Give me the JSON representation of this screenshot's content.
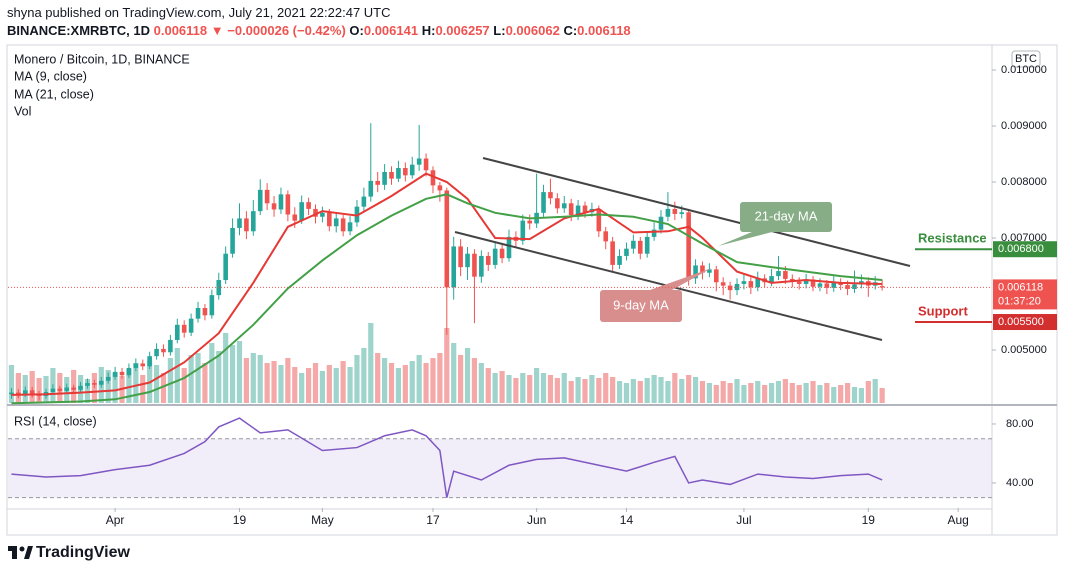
{
  "header": {
    "publisher_line": "shyna published on TradingView.com, July 21, 2021 22:22:47 UTC",
    "symbol": "BINANCE:XMRBTC, 1D",
    "change": "▼ −0.000026 (−0.42%)",
    "ohlc_labels": [
      "O:",
      "H:",
      "L:",
      "C:"
    ],
    "countdown": "01:37:20",
    "currency": "BTC",
    "brand": "TradingView"
  },
  "chart_data": {
    "type": "candlestick",
    "title": "Monero / Bitcoin, 1D, BINANCE",
    "up_color": "#26a69a",
    "down_color": "#ef5350",
    "open": [
      0.00421,
      0.00424,
      0.0042,
      0.00428,
      0.00422,
      0.00418,
      0.00425,
      0.00431,
      0.00427,
      0.00433,
      0.00429,
      0.00436,
      0.00441,
      0.00438,
      0.00445,
      0.00452,
      0.00461,
      0.00455,
      0.00468,
      0.00476,
      0.00471,
      0.00489,
      0.00502,
      0.00496,
      0.00518,
      0.00545,
      0.00531,
      0.00556,
      0.00575,
      0.00562,
      0.00598,
      0.00625,
      0.00672,
      0.00718,
      0.00735,
      0.00712,
      0.00748,
      0.00786,
      0.00762,
      0.00751,
      0.00778,
      0.00742,
      0.00731,
      0.00764,
      0.00752,
      0.00738,
      0.00745,
      0.00721,
      0.00735,
      0.00712,
      0.00728,
      0.00756,
      0.00774,
      0.00802,
      0.00795,
      0.00818,
      0.00806,
      0.00825,
      0.00812,
      0.00831,
      0.00842,
      0.00821,
      0.00794,
      0.00785,
      0.00612,
      0.00685,
      0.00648,
      0.00672,
      0.00631,
      0.00668,
      0.00652,
      0.00681,
      0.00664,
      0.00702,
      0.00695,
      0.00731,
      0.00726,
      0.00745,
      0.00782,
      0.00771,
      0.00753,
      0.00762,
      0.00741,
      0.00758,
      0.00746,
      0.00752,
      0.00712,
      0.00694,
      0.00652,
      0.00668,
      0.00681,
      0.00695,
      0.00672,
      0.00702,
      0.00715,
      0.00738,
      0.00752,
      0.00743,
      0.00746,
      0.00628,
      0.00651,
      0.00638,
      0.00644,
      0.00621,
      0.00615,
      0.00607,
      0.00618,
      0.00623,
      0.00612,
      0.00628,
      0.00621,
      0.00632,
      0.00641,
      0.00627,
      0.00622,
      0.00618,
      0.00626,
      0.00613,
      0.00619,
      0.00611,
      0.00621,
      0.00616,
      0.00609,
      0.00617,
      0.00623,
      0.00615,
      0.006141
    ],
    "high": [
      0.00432,
      0.0043,
      0.00435,
      0.00434,
      0.00427,
      0.00431,
      0.00439,
      0.00436,
      0.0044,
      0.00438,
      0.00443,
      0.00449,
      0.00447,
      0.00452,
      0.0046,
      0.0047,
      0.00468,
      0.00476,
      0.00485,
      0.00483,
      0.00497,
      0.00512,
      0.0051,
      0.00527,
      0.00556,
      0.00553,
      0.00565,
      0.00586,
      0.00582,
      0.00608,
      0.00638,
      0.00685,
      0.00735,
      0.00762,
      0.00748,
      0.00768,
      0.00805,
      0.00798,
      0.00775,
      0.0079,
      0.00785,
      0.00755,
      0.00776,
      0.00772,
      0.0076,
      0.00756,
      0.00752,
      0.00745,
      0.00741,
      0.00739,
      0.00768,
      0.0079,
      0.00905,
      0.00818,
      0.00832,
      0.00828,
      0.00838,
      0.00835,
      0.00845,
      0.00902,
      0.00851,
      0.00828,
      0.008,
      0.0079,
      0.00702,
      0.00698,
      0.00684,
      0.0068,
      0.00678,
      0.00675,
      0.00692,
      0.0069,
      0.00715,
      0.00712,
      0.00742,
      0.00742,
      0.00815,
      0.00795,
      0.00806,
      0.0078,
      0.00775,
      0.0077,
      0.00768,
      0.00765,
      0.00763,
      0.00758,
      0.0072,
      0.00702,
      0.0068,
      0.00692,
      0.00706,
      0.00702,
      0.00712,
      0.00728,
      0.0075,
      0.00782,
      0.00765,
      0.00758,
      0.00752,
      0.00662,
      0.00658,
      0.00655,
      0.0065,
      0.0063,
      0.00622,
      0.00628,
      0.00635,
      0.0063,
      0.0064,
      0.00635,
      0.00645,
      0.00668,
      0.0065,
      0.00635,
      0.0063,
      0.00636,
      0.00632,
      0.00628,
      0.00625,
      0.00632,
      0.00628,
      0.00624,
      0.00642,
      0.00635,
      0.0063,
      0.00632,
      0.006257
    ],
    "low": [
      0.00413,
      0.00414,
      0.00416,
      0.00415,
      0.0041,
      0.00413,
      0.0042,
      0.00421,
      0.00422,
      0.00423,
      0.00425,
      0.00431,
      0.00432,
      0.00433,
      0.0044,
      0.00447,
      0.00449,
      0.0045,
      0.00462,
      0.00464,
      0.00466,
      0.00483,
      0.00488,
      0.0049,
      0.00512,
      0.00522,
      0.00525,
      0.00549,
      0.00553,
      0.00556,
      0.0059,
      0.00618,
      0.00665,
      0.00705,
      0.00698,
      0.00704,
      0.00741,
      0.0075,
      0.00738,
      0.00743,
      0.0073,
      0.00718,
      0.00725,
      0.00741,
      0.00726,
      0.00728,
      0.00712,
      0.0071,
      0.00703,
      0.00705,
      0.0072,
      0.00748,
      0.00765,
      0.00782,
      0.00786,
      0.00795,
      0.008,
      0.00801,
      0.00806,
      0.0082,
      0.0081,
      0.0078,
      0.00765,
      0.00527,
      0.0059,
      0.00632,
      0.00625,
      0.00548,
      0.0062,
      0.00641,
      0.00645,
      0.00655,
      0.00658,
      0.00684,
      0.00688,
      0.00715,
      0.00718,
      0.00738,
      0.0076,
      0.00744,
      0.00745,
      0.0073,
      0.00732,
      0.00736,
      0.00738,
      0.00702,
      0.0068,
      0.0064,
      0.00645,
      0.0066,
      0.00672,
      0.00662,
      0.00665,
      0.00695,
      0.00708,
      0.0073,
      0.00732,
      0.00735,
      0.00615,
      0.00618,
      0.00626,
      0.0063,
      0.00605,
      0.00598,
      0.0059,
      0.00598,
      0.00608,
      0.006,
      0.00605,
      0.00612,
      0.00614,
      0.00625,
      0.00618,
      0.00612,
      0.00608,
      0.0061,
      0.00605,
      0.00605,
      0.006,
      0.00604,
      0.00607,
      0.00598,
      0.00602,
      0.0061,
      0.00595,
      0.00608,
      0.006062
    ],
    "close": [
      0.00424,
      0.0042,
      0.00428,
      0.00422,
      0.00418,
      0.00425,
      0.00431,
      0.00427,
      0.00433,
      0.00429,
      0.00436,
      0.00441,
      0.00438,
      0.00445,
      0.00452,
      0.00461,
      0.00455,
      0.00468,
      0.00476,
      0.00471,
      0.00489,
      0.00502,
      0.00496,
      0.00518,
      0.00545,
      0.00531,
      0.00556,
      0.00575,
      0.00562,
      0.00598,
      0.00625,
      0.00672,
      0.00718,
      0.00735,
      0.00712,
      0.00748,
      0.00786,
      0.00762,
      0.00751,
      0.00778,
      0.00742,
      0.00731,
      0.00764,
      0.00752,
      0.00738,
      0.00745,
      0.00721,
      0.00735,
      0.00712,
      0.00728,
      0.00756,
      0.00774,
      0.00802,
      0.00795,
      0.00818,
      0.00806,
      0.00825,
      0.00812,
      0.00831,
      0.00842,
      0.00821,
      0.00794,
      0.00785,
      0.00612,
      0.00685,
      0.00648,
      0.00672,
      0.00631,
      0.00668,
      0.00652,
      0.00681,
      0.00664,
      0.00702,
      0.00695,
      0.00731,
      0.00726,
      0.00745,
      0.00782,
      0.00771,
      0.00753,
      0.00762,
      0.00741,
      0.00758,
      0.00746,
      0.00752,
      0.00712,
      0.00694,
      0.00652,
      0.00668,
      0.00681,
      0.00695,
      0.00672,
      0.00702,
      0.00715,
      0.00738,
      0.00752,
      0.00743,
      0.00746,
      0.00628,
      0.00651,
      0.00638,
      0.00644,
      0.00621,
      0.00615,
      0.00607,
      0.00618,
      0.00623,
      0.00612,
      0.00628,
      0.00621,
      0.00632,
      0.00641,
      0.00627,
      0.00622,
      0.00618,
      0.00626,
      0.00613,
      0.00619,
      0.00611,
      0.00621,
      0.00616,
      0.00609,
      0.00617,
      0.00623,
      0.00615,
      0.00621,
      0.006118
    ],
    "xlim": [
      -0.5,
      141.9
    ],
    "xticks": [
      {
        "value": 15,
        "label": "Apr"
      },
      {
        "value": 33,
        "label": "19"
      },
      {
        "value": 45,
        "label": "May"
      },
      {
        "value": 61,
        "label": "17"
      },
      {
        "value": 76,
        "label": "Jun"
      },
      {
        "value": 89,
        "label": "14"
      },
      {
        "value": 106,
        "label": "Jul"
      },
      {
        "value": 124,
        "label": "19"
      },
      {
        "value": 137,
        "label": "Aug"
      }
    ],
    "ylim": [
      0.004054,
      0.010429
    ],
    "yticks": [
      {
        "value": 0.01,
        "label": "0.010000"
      },
      {
        "value": 0.009,
        "label": "0.009000"
      },
      {
        "value": 0.008,
        "label": "0.008000"
      },
      {
        "value": 0.007,
        "label": "0.007000"
      },
      {
        "value": 0.005,
        "label": "0.005000"
      }
    ],
    "series": [
      {
        "name": "MA (9, close)",
        "color": "#e53935",
        "x": [
          0,
          5,
          10,
          15,
          20,
          25,
          30,
          35,
          40,
          45,
          50,
          55,
          60,
          63,
          66,
          70,
          75,
          80,
          85,
          90,
          95,
          98,
          100,
          105,
          110,
          115,
          120,
          126
        ],
        "values": [
          0.0042,
          0.00421,
          0.00424,
          0.00428,
          0.00442,
          0.00478,
          0.0053,
          0.0062,
          0.0072,
          0.00748,
          0.0074,
          0.00775,
          0.00815,
          0.008,
          0.0077,
          0.007,
          0.00698,
          0.00735,
          0.00752,
          0.0071,
          0.00712,
          0.0072,
          0.007,
          0.0064,
          0.0062,
          0.00625,
          0.0062,
          0.00618
        ]
      },
      {
        "name": "MA (21, close)",
        "color": "#43a047",
        "x": [
          0,
          10,
          15,
          20,
          25,
          30,
          35,
          40,
          45,
          50,
          55,
          60,
          63,
          66,
          70,
          75,
          80,
          85,
          90,
          95,
          100,
          105,
          110,
          115,
          120,
          126
        ],
        "values": [
          0.00405,
          0.00408,
          0.00412,
          0.00425,
          0.0045,
          0.0049,
          0.00545,
          0.0061,
          0.0066,
          0.00705,
          0.0074,
          0.0077,
          0.00778,
          0.00762,
          0.00745,
          0.00735,
          0.00738,
          0.00742,
          0.00738,
          0.00725,
          0.0069,
          0.00657,
          0.00648,
          0.0064,
          0.00632,
          0.00625
        ]
      }
    ],
    "volume": {
      "name": "Vol",
      "ylim": [
        0,
        100
      ],
      "up_color": "#9fd4cd",
      "down_color": "#f4a9a8",
      "values": [
        38,
        30,
        28,
        32,
        25,
        27,
        35,
        30,
        26,
        33,
        28,
        24,
        30,
        36,
        33,
        30,
        27,
        34,
        40,
        28,
        42,
        38,
        30,
        45,
        55,
        35,
        48,
        50,
        40,
        60,
        52,
        70,
        58,
        62,
        45,
        50,
        48,
        40,
        42,
        38,
        45,
        36,
        30,
        35,
        40,
        32,
        38,
        35,
        42,
        36,
        48,
        55,
        80,
        50,
        45,
        40,
        35,
        38,
        42,
        48,
        40,
        45,
        50,
        75,
        60,
        48,
        55,
        45,
        40,
        35,
        30,
        32,
        28,
        25,
        30,
        28,
        35,
        30,
        28,
        25,
        30,
        22,
        26,
        24,
        28,
        25,
        30,
        26,
        22,
        20,
        24,
        22,
        25,
        28,
        26,
        22,
        30,
        24,
        28,
        26,
        22,
        20,
        18,
        22,
        20,
        24,
        18,
        20,
        22,
        18,
        20,
        22,
        24,
        20,
        18,
        20,
        22,
        18,
        20,
        16,
        18,
        20,
        16,
        15,
        22,
        24,
        15
      ]
    },
    "levels": [
      {
        "name": "Resistance",
        "value": 0.0068,
        "label": "0.006800",
        "color": "#388e3c"
      },
      {
        "name": "Support",
        "value": 0.0055,
        "label": "0.005500",
        "color": "#d32f2f"
      }
    ],
    "ma_notes": [
      {
        "text": "21-day MA",
        "color": "#86ad86"
      },
      {
        "text": "9-day MA",
        "color": "#d98e8e"
      }
    ],
    "rsi": {
      "name": "RSI (14, close)",
      "color": "#7e57c2",
      "band": [
        30,
        70
      ],
      "ylim": [
        23,
        92.2
      ],
      "yticks": [
        {
          "value": 80,
          "label": "80.00"
        },
        {
          "value": 40,
          "label": "40.00"
        }
      ],
      "x": [
        0,
        5,
        10,
        15,
        20,
        25,
        28,
        30,
        33,
        36,
        40,
        45,
        50,
        54,
        58,
        60,
        62,
        63,
        64,
        68,
        72,
        76,
        80,
        85,
        89,
        93,
        96,
        98,
        100,
        104,
        108,
        112,
        116,
        120,
        124,
        126
      ],
      "values": [
        46,
        44,
        45,
        49,
        52,
        60,
        68,
        78,
        84,
        74,
        76,
        62,
        64,
        72,
        76,
        72,
        62,
        30,
        48,
        42,
        52,
        56,
        57,
        52,
        48,
        54,
        58,
        40,
        42,
        39,
        46,
        44,
        43,
        45,
        46,
        42
      ]
    }
  }
}
